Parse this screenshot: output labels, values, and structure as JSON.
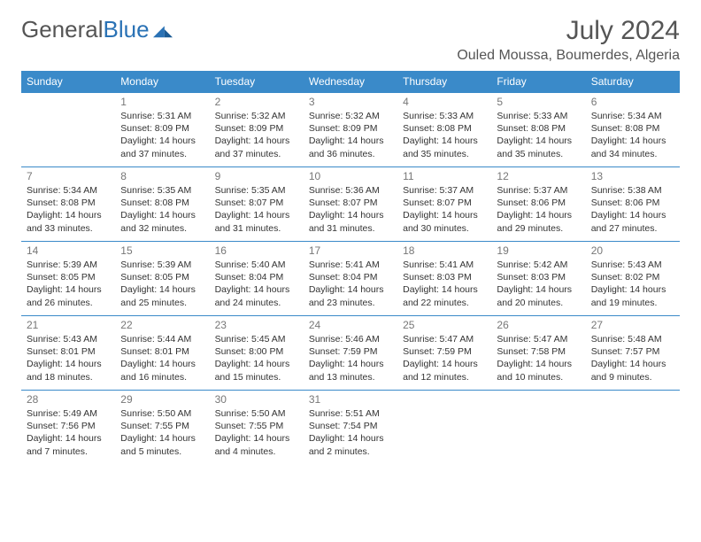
{
  "logo": {
    "word1": "General",
    "word2": "Blue"
  },
  "header": {
    "title": "July 2024",
    "location": "Ouled Moussa, Boumerdes, Algeria"
  },
  "colors": {
    "header_bg": "#3a8ac9",
    "header_text": "#ffffff",
    "border": "#3a8ac9",
    "daynum": "#777777",
    "body_text": "#333333",
    "title_text": "#555555",
    "logo_blue": "#2a72b5"
  },
  "weekdays": [
    "Sunday",
    "Monday",
    "Tuesday",
    "Wednesday",
    "Thursday",
    "Friday",
    "Saturday"
  ],
  "weeks": [
    [
      null,
      {
        "n": "1",
        "sr": "Sunrise: 5:31 AM",
        "ss": "Sunset: 8:09 PM",
        "dl": "Daylight: 14 hours and 37 minutes."
      },
      {
        "n": "2",
        "sr": "Sunrise: 5:32 AM",
        "ss": "Sunset: 8:09 PM",
        "dl": "Daylight: 14 hours and 37 minutes."
      },
      {
        "n": "3",
        "sr": "Sunrise: 5:32 AM",
        "ss": "Sunset: 8:09 PM",
        "dl": "Daylight: 14 hours and 36 minutes."
      },
      {
        "n": "4",
        "sr": "Sunrise: 5:33 AM",
        "ss": "Sunset: 8:08 PM",
        "dl": "Daylight: 14 hours and 35 minutes."
      },
      {
        "n": "5",
        "sr": "Sunrise: 5:33 AM",
        "ss": "Sunset: 8:08 PM",
        "dl": "Daylight: 14 hours and 35 minutes."
      },
      {
        "n": "6",
        "sr": "Sunrise: 5:34 AM",
        "ss": "Sunset: 8:08 PM",
        "dl": "Daylight: 14 hours and 34 minutes."
      }
    ],
    [
      {
        "n": "7",
        "sr": "Sunrise: 5:34 AM",
        "ss": "Sunset: 8:08 PM",
        "dl": "Daylight: 14 hours and 33 minutes."
      },
      {
        "n": "8",
        "sr": "Sunrise: 5:35 AM",
        "ss": "Sunset: 8:08 PM",
        "dl": "Daylight: 14 hours and 32 minutes."
      },
      {
        "n": "9",
        "sr": "Sunrise: 5:35 AM",
        "ss": "Sunset: 8:07 PM",
        "dl": "Daylight: 14 hours and 31 minutes."
      },
      {
        "n": "10",
        "sr": "Sunrise: 5:36 AM",
        "ss": "Sunset: 8:07 PM",
        "dl": "Daylight: 14 hours and 31 minutes."
      },
      {
        "n": "11",
        "sr": "Sunrise: 5:37 AM",
        "ss": "Sunset: 8:07 PM",
        "dl": "Daylight: 14 hours and 30 minutes."
      },
      {
        "n": "12",
        "sr": "Sunrise: 5:37 AM",
        "ss": "Sunset: 8:06 PM",
        "dl": "Daylight: 14 hours and 29 minutes."
      },
      {
        "n": "13",
        "sr": "Sunrise: 5:38 AM",
        "ss": "Sunset: 8:06 PM",
        "dl": "Daylight: 14 hours and 27 minutes."
      }
    ],
    [
      {
        "n": "14",
        "sr": "Sunrise: 5:39 AM",
        "ss": "Sunset: 8:05 PM",
        "dl": "Daylight: 14 hours and 26 minutes."
      },
      {
        "n": "15",
        "sr": "Sunrise: 5:39 AM",
        "ss": "Sunset: 8:05 PM",
        "dl": "Daylight: 14 hours and 25 minutes."
      },
      {
        "n": "16",
        "sr": "Sunrise: 5:40 AM",
        "ss": "Sunset: 8:04 PM",
        "dl": "Daylight: 14 hours and 24 minutes."
      },
      {
        "n": "17",
        "sr": "Sunrise: 5:41 AM",
        "ss": "Sunset: 8:04 PM",
        "dl": "Daylight: 14 hours and 23 minutes."
      },
      {
        "n": "18",
        "sr": "Sunrise: 5:41 AM",
        "ss": "Sunset: 8:03 PM",
        "dl": "Daylight: 14 hours and 22 minutes."
      },
      {
        "n": "19",
        "sr": "Sunrise: 5:42 AM",
        "ss": "Sunset: 8:03 PM",
        "dl": "Daylight: 14 hours and 20 minutes."
      },
      {
        "n": "20",
        "sr": "Sunrise: 5:43 AM",
        "ss": "Sunset: 8:02 PM",
        "dl": "Daylight: 14 hours and 19 minutes."
      }
    ],
    [
      {
        "n": "21",
        "sr": "Sunrise: 5:43 AM",
        "ss": "Sunset: 8:01 PM",
        "dl": "Daylight: 14 hours and 18 minutes."
      },
      {
        "n": "22",
        "sr": "Sunrise: 5:44 AM",
        "ss": "Sunset: 8:01 PM",
        "dl": "Daylight: 14 hours and 16 minutes."
      },
      {
        "n": "23",
        "sr": "Sunrise: 5:45 AM",
        "ss": "Sunset: 8:00 PM",
        "dl": "Daylight: 14 hours and 15 minutes."
      },
      {
        "n": "24",
        "sr": "Sunrise: 5:46 AM",
        "ss": "Sunset: 7:59 PM",
        "dl": "Daylight: 14 hours and 13 minutes."
      },
      {
        "n": "25",
        "sr": "Sunrise: 5:47 AM",
        "ss": "Sunset: 7:59 PM",
        "dl": "Daylight: 14 hours and 12 minutes."
      },
      {
        "n": "26",
        "sr": "Sunrise: 5:47 AM",
        "ss": "Sunset: 7:58 PM",
        "dl": "Daylight: 14 hours and 10 minutes."
      },
      {
        "n": "27",
        "sr": "Sunrise: 5:48 AM",
        "ss": "Sunset: 7:57 PM",
        "dl": "Daylight: 14 hours and 9 minutes."
      }
    ],
    [
      {
        "n": "28",
        "sr": "Sunrise: 5:49 AM",
        "ss": "Sunset: 7:56 PM",
        "dl": "Daylight: 14 hours and 7 minutes."
      },
      {
        "n": "29",
        "sr": "Sunrise: 5:50 AM",
        "ss": "Sunset: 7:55 PM",
        "dl": "Daylight: 14 hours and 5 minutes."
      },
      {
        "n": "30",
        "sr": "Sunrise: 5:50 AM",
        "ss": "Sunset: 7:55 PM",
        "dl": "Daylight: 14 hours and 4 minutes."
      },
      {
        "n": "31",
        "sr": "Sunrise: 5:51 AM",
        "ss": "Sunset: 7:54 PM",
        "dl": "Daylight: 14 hours and 2 minutes."
      },
      null,
      null,
      null
    ]
  ]
}
